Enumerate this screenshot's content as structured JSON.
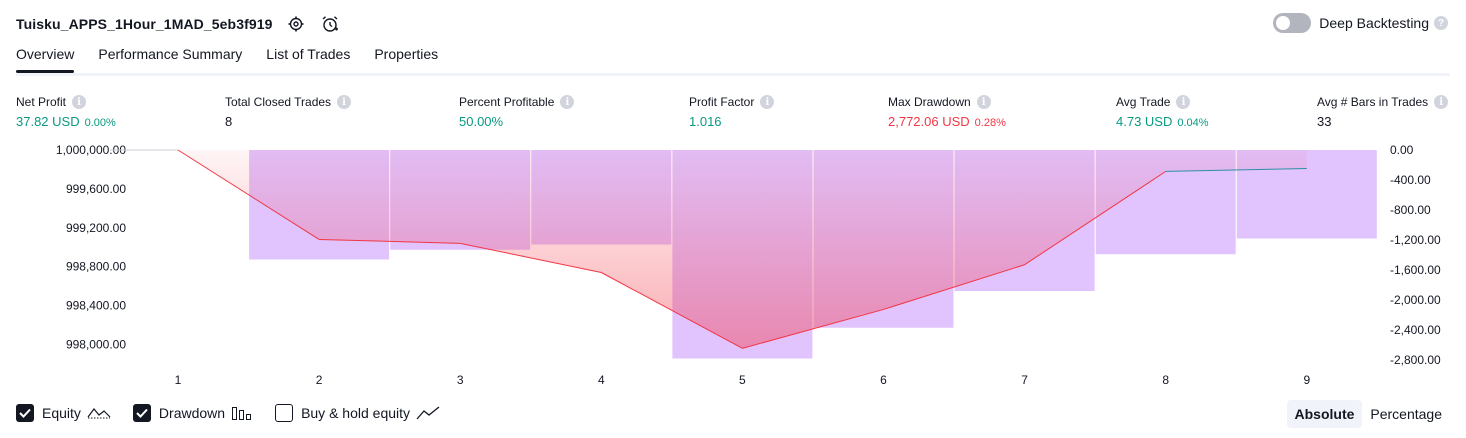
{
  "header": {
    "strategy_name": "Tuisku_APPS_1Hour_1MAD_5eb3f919",
    "settings_icon": "gear-icon",
    "alert_icon": "alarm-clock-plus-icon",
    "deep_backtesting_label": "Deep Backtesting",
    "deep_backtesting_on": false
  },
  "tabs": [
    {
      "label": "Overview",
      "active": true
    },
    {
      "label": "Performance Summary",
      "active": false
    },
    {
      "label": "List of Trades",
      "active": false
    },
    {
      "label": "Properties",
      "active": false
    }
  ],
  "stats": {
    "net_profit": {
      "label": "Net Profit",
      "value": "37.82 USD",
      "sub": "0.00%"
    },
    "total_closed_trades": {
      "label": "Total Closed Trades",
      "value": "8"
    },
    "percent_profitable": {
      "label": "Percent Profitable",
      "value": "50.00%"
    },
    "profit_factor": {
      "label": "Profit Factor",
      "value": "1.016"
    },
    "max_drawdown": {
      "label": "Max Drawdown",
      "value": "2,772.06 USD",
      "sub": "0.28%"
    },
    "avg_trade": {
      "label": "Avg Trade",
      "value": "4.73 USD",
      "sub": "0.04%"
    },
    "avg_bars": {
      "label": "Avg # Bars in Trades",
      "value": "33"
    }
  },
  "colors": {
    "green": "#089981",
    "red": "#f23645",
    "equity_line": "#f23645",
    "equity_line_up": "#2e8fa4",
    "drawdown_bar": "#e1c3fd"
  },
  "chart_data": {
    "type": "line",
    "x": [
      1,
      2,
      3,
      4,
      5,
      6,
      7,
      8,
      9
    ],
    "equity": {
      "values": [
        1000000.0,
        999080.0,
        999040.0,
        998740.0,
        997960.0,
        998360.0,
        998820.0,
        999780.0,
        999810.0
      ],
      "leading_value": 1000000.0
    },
    "drawdown": {
      "values": [
        0,
        -1460,
        -1330,
        -1260,
        -2780,
        -2370,
        -1880,
        -1390,
        -1180
      ]
    },
    "left_axis": {
      "ticks": [
        "1,000,000.00",
        "999,600.00",
        "999,200.00",
        "998,800.00",
        "998,400.00",
        "998,000.00"
      ],
      "tick_values": [
        1000000,
        999600,
        999200,
        998800,
        998400,
        998000
      ],
      "ylim": [
        997840,
        1000000
      ]
    },
    "right_axis": {
      "ticks": [
        "0.00",
        "-400.00",
        "-800.00",
        "-1,200.00",
        "-1,600.00",
        "-2,000.00",
        "-2,400.00",
        "-2,800.00"
      ],
      "tick_values": [
        0,
        -400,
        -800,
        -1200,
        -1600,
        -2000,
        -2400,
        -2800
      ],
      "ylim": [
        -2800,
        0
      ]
    },
    "x_ticks": [
      "1",
      "2",
      "3",
      "4",
      "5",
      "6",
      "7",
      "8",
      "9"
    ]
  },
  "legend": {
    "equity": {
      "label": "Equity",
      "checked": true,
      "icon": "equity-line-icon"
    },
    "drawdown": {
      "label": "Drawdown",
      "checked": true,
      "icon": "drawdown-bars-icon"
    },
    "buy_hold": {
      "label": "Buy & hold equity",
      "checked": false,
      "icon": "buy-hold-line-icon"
    }
  },
  "mode": {
    "absolute_label": "Absolute",
    "percentage_label": "Percentage",
    "selected": "Absolute"
  }
}
